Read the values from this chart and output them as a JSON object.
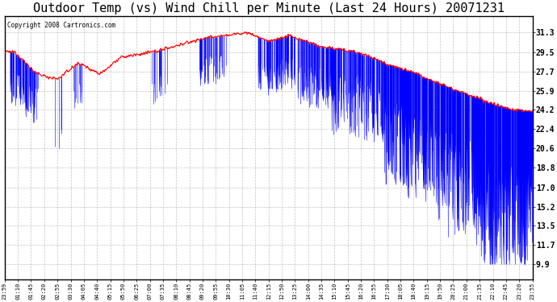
{
  "title": "Outdoor Temp (vs) Wind Chill per Minute (Last 24 Hours) 20071231",
  "copyright": "Copyright 2008 Cartronics.com",
  "yticks": [
    9.9,
    11.7,
    13.5,
    15.2,
    17.0,
    18.8,
    20.6,
    22.4,
    24.2,
    25.9,
    27.7,
    29.5,
    31.3
  ],
  "ylim": [
    8.5,
    32.8
  ],
  "bg_color": "#ffffff",
  "grid_color": "#aaaaaa",
  "line_color_red": "#ff0000",
  "bar_color_blue": "#0000ff",
  "title_fontsize": 11,
  "n_points": 1440,
  "x_tick_labels": [
    "23:59",
    "01:10",
    "01:45",
    "02:20",
    "02:55",
    "03:30",
    "04:05",
    "04:40",
    "05:15",
    "05:50",
    "06:25",
    "07:00",
    "07:35",
    "08:10",
    "08:45",
    "09:20",
    "09:55",
    "10:30",
    "11:05",
    "11:40",
    "12:15",
    "12:50",
    "13:25",
    "14:00",
    "14:35",
    "15:10",
    "15:45",
    "16:20",
    "16:55",
    "17:30",
    "18:05",
    "18:40",
    "19:15",
    "19:50",
    "20:25",
    "21:00",
    "21:35",
    "22:10",
    "22:45",
    "23:20",
    "23:55"
  ]
}
